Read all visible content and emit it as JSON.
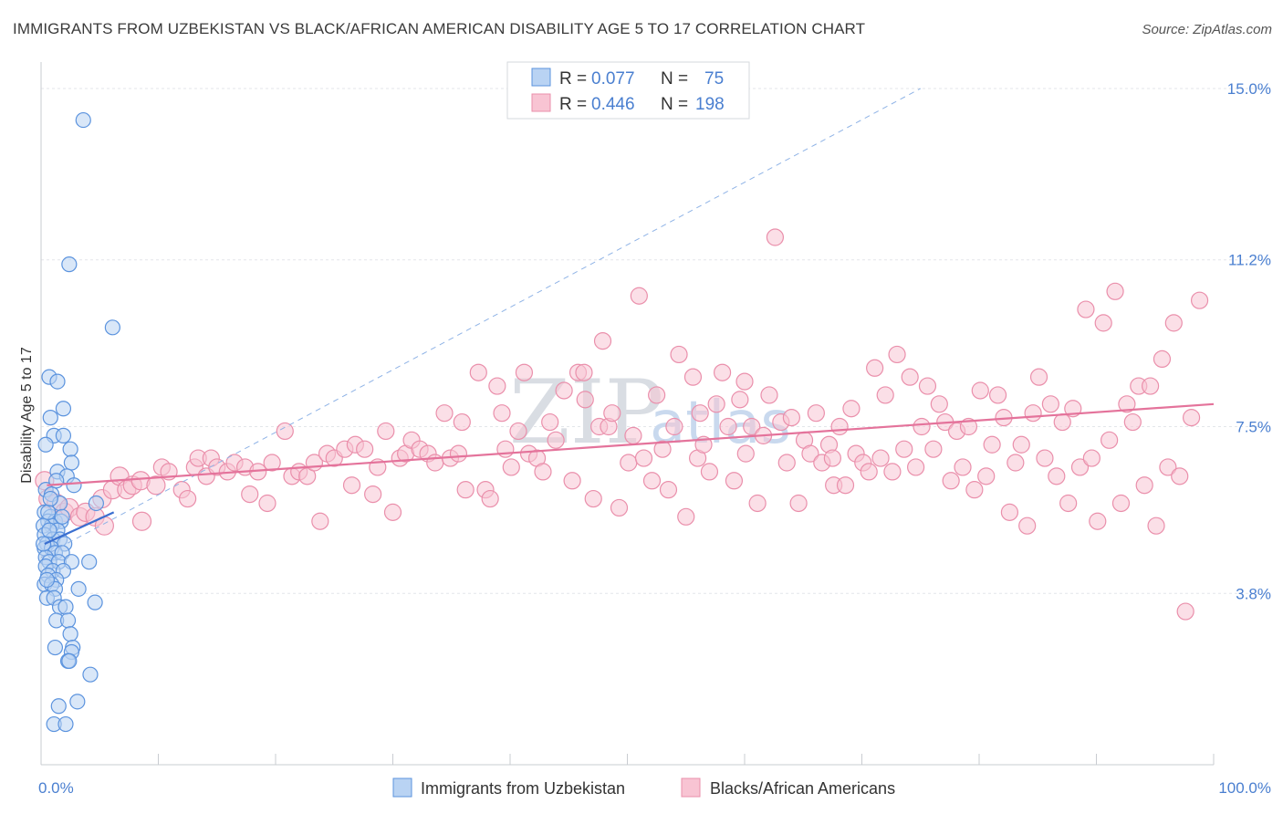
{
  "title": "IMMIGRANTS FROM UZBEKISTAN VS BLACK/AFRICAN AMERICAN DISABILITY AGE 5 TO 17 CORRELATION CHART",
  "source": "Source: ZipAtlas.com",
  "watermark": {
    "zip": "ZIP",
    "atlas": "atlas"
  },
  "legend": {
    "rows": [
      {
        "r_label": "R =",
        "r_value": "0.077",
        "n_label": "N =",
        "n_value": "75"
      },
      {
        "r_label": "R =",
        "r_value": "0.446",
        "n_label": "N =",
        "n_value": "198"
      }
    ]
  },
  "bottom_legend": {
    "series1": "Immigrants from Uzbekistan",
    "series2": "Blacks/African Americans"
  },
  "colors": {
    "blue_fill": "#b9d3f3",
    "blue_stroke": "#5b93de",
    "blue_line": "#3a6fd0",
    "pink_fill": "#f8c4d3",
    "pink_stroke": "#ea8fab",
    "pink_line": "#e4739b",
    "grid": "#e3e6ea",
    "tick_text": "#4a7fd0"
  },
  "chart_data": {
    "type": "scatter",
    "ylabel": "Disability Age 5 to 17",
    "xlim": [
      0,
      100
    ],
    "ylim": [
      0,
      15.0
    ],
    "x_tick_labels": [
      "0.0%",
      "100.0%"
    ],
    "y_ticks": [
      3.8,
      7.5,
      11.2,
      15.0
    ],
    "y_tick_labels": [
      "3.8%",
      "7.5%",
      "11.2%",
      "15.0%"
    ],
    "grid": true,
    "series": [
      {
        "name": "Immigrants from Uzbekistan",
        "color": "#5b93de",
        "trend": {
          "x": [
            0.3,
            6.2
          ],
          "y": [
            4.9,
            5.6
          ]
        },
        "points": [
          [
            3.6,
            14.3
          ],
          [
            2.4,
            11.1
          ],
          [
            6.1,
            9.7
          ],
          [
            0.7,
            8.6
          ],
          [
            1.4,
            8.5
          ],
          [
            1.9,
            7.9
          ],
          [
            0.8,
            7.7
          ],
          [
            1.1,
            7.3
          ],
          [
            1.9,
            7.3
          ],
          [
            2.5,
            7.0
          ],
          [
            0.4,
            7.1
          ],
          [
            2.6,
            6.7
          ],
          [
            1.4,
            6.5
          ],
          [
            2.2,
            6.4
          ],
          [
            0.4,
            6.1
          ],
          [
            0.9,
            6.0
          ],
          [
            1.6,
            5.8
          ],
          [
            4.7,
            5.8
          ],
          [
            0.3,
            5.6
          ],
          [
            0.8,
            5.5
          ],
          [
            0.6,
            5.4
          ],
          [
            1.2,
            5.4
          ],
          [
            1.7,
            5.4
          ],
          [
            0.9,
            5.3
          ],
          [
            1.4,
            5.2
          ],
          [
            0.2,
            5.3
          ],
          [
            0.3,
            5.1
          ],
          [
            1.0,
            5.0
          ],
          [
            1.6,
            5.0
          ],
          [
            0.5,
            4.9
          ],
          [
            2.0,
            4.9
          ],
          [
            0.3,
            4.8
          ],
          [
            0.9,
            4.8
          ],
          [
            1.2,
            4.7
          ],
          [
            1.8,
            4.7
          ],
          [
            0.4,
            4.6
          ],
          [
            0.7,
            4.5
          ],
          [
            1.5,
            4.5
          ],
          [
            2.6,
            4.5
          ],
          [
            4.1,
            4.5
          ],
          [
            0.4,
            4.4
          ],
          [
            1.0,
            4.3
          ],
          [
            1.9,
            4.3
          ],
          [
            0.6,
            4.2
          ],
          [
            1.3,
            4.1
          ],
          [
            0.3,
            4.0
          ],
          [
            0.9,
            4.0
          ],
          [
            1.2,
            3.9
          ],
          [
            3.2,
            3.9
          ],
          [
            0.5,
            3.7
          ],
          [
            1.1,
            3.7
          ],
          [
            4.6,
            3.6
          ],
          [
            1.6,
            3.5
          ],
          [
            2.1,
            3.5
          ],
          [
            1.3,
            3.2
          ],
          [
            2.3,
            3.2
          ],
          [
            2.5,
            2.9
          ],
          [
            1.2,
            2.6
          ],
          [
            2.7,
            2.6
          ],
          [
            2.6,
            2.5
          ],
          [
            2.3,
            2.3
          ],
          [
            2.4,
            2.3
          ],
          [
            4.2,
            2.0
          ],
          [
            1.5,
            1.3
          ],
          [
            3.1,
            1.4
          ],
          [
            1.1,
            0.9
          ],
          [
            2.1,
            0.9
          ],
          [
            0.6,
            5.6
          ],
          [
            0.8,
            5.9
          ],
          [
            1.8,
            5.5
          ],
          [
            0.2,
            4.9
          ],
          [
            0.7,
            5.2
          ],
          [
            1.3,
            6.3
          ],
          [
            2.8,
            6.2
          ],
          [
            0.5,
            4.1
          ]
        ]
      },
      {
        "name": "Blacks/African Americans",
        "color": "#ea8fab",
        "trend": {
          "x": [
            0.5,
            100
          ],
          "y": [
            6.2,
            8.0
          ]
        },
        "points": [
          [
            0.3,
            6.3
          ],
          [
            0.6,
            5.9
          ],
          [
            1.3,
            5.8
          ],
          [
            2.0,
            5.6
          ],
          [
            2.4,
            5.7
          ],
          [
            3.3,
            5.5
          ],
          [
            3.8,
            5.6
          ],
          [
            4.6,
            5.5
          ],
          [
            5.2,
            5.9
          ],
          [
            5.4,
            5.3
          ],
          [
            6.1,
            6.1
          ],
          [
            6.7,
            6.4
          ],
          [
            7.3,
            6.1
          ],
          [
            7.8,
            6.2
          ],
          [
            8.5,
            6.3
          ],
          [
            8.6,
            5.4
          ],
          [
            9.8,
            6.2
          ],
          [
            10.3,
            6.6
          ],
          [
            10.9,
            6.5
          ],
          [
            12.0,
            6.1
          ],
          [
            12.5,
            5.9
          ],
          [
            13.1,
            6.6
          ],
          [
            13.4,
            6.8
          ],
          [
            14.1,
            6.4
          ],
          [
            14.5,
            6.8
          ],
          [
            15.0,
            6.6
          ],
          [
            15.9,
            6.5
          ],
          [
            16.5,
            6.7
          ],
          [
            17.4,
            6.6
          ],
          [
            17.8,
            6.0
          ],
          [
            18.5,
            6.5
          ],
          [
            19.3,
            5.8
          ],
          [
            19.7,
            6.7
          ],
          [
            20.8,
            7.4
          ],
          [
            21.4,
            6.4
          ],
          [
            22.0,
            6.5
          ],
          [
            22.7,
            6.4
          ],
          [
            23.3,
            6.7
          ],
          [
            23.8,
            5.4
          ],
          [
            24.4,
            6.9
          ],
          [
            25.0,
            6.8
          ],
          [
            25.9,
            7.0
          ],
          [
            26.5,
            6.2
          ],
          [
            26.8,
            7.1
          ],
          [
            27.6,
            7.0
          ],
          [
            28.3,
            6.0
          ],
          [
            28.7,
            6.6
          ],
          [
            29.4,
            7.4
          ],
          [
            30.0,
            5.6
          ],
          [
            30.6,
            6.8
          ],
          [
            31.1,
            6.9
          ],
          [
            31.6,
            7.2
          ],
          [
            32.3,
            7.0
          ],
          [
            33.0,
            6.9
          ],
          [
            33.6,
            6.7
          ],
          [
            34.4,
            7.8
          ],
          [
            34.9,
            6.8
          ],
          [
            35.6,
            6.9
          ],
          [
            35.9,
            7.6
          ],
          [
            36.2,
            6.1
          ],
          [
            37.3,
            8.7
          ],
          [
            37.9,
            6.1
          ],
          [
            38.3,
            5.9
          ],
          [
            38.9,
            8.4
          ],
          [
            39.3,
            7.8
          ],
          [
            39.6,
            7.0
          ],
          [
            40.1,
            6.6
          ],
          [
            40.7,
            7.4
          ],
          [
            41.2,
            8.7
          ],
          [
            41.6,
            6.9
          ],
          [
            42.3,
            6.8
          ],
          [
            42.8,
            6.5
          ],
          [
            43.4,
            7.6
          ],
          [
            43.9,
            7.2
          ],
          [
            44.6,
            8.3
          ],
          [
            45.3,
            6.3
          ],
          [
            45.8,
            8.7
          ],
          [
            46.4,
            8.1
          ],
          [
            47.1,
            5.9
          ],
          [
            47.6,
            7.5
          ],
          [
            47.9,
            9.4
          ],
          [
            48.4,
            7.5
          ],
          [
            48.7,
            7.8
          ],
          [
            49.3,
            5.7
          ],
          [
            50.1,
            6.7
          ],
          [
            50.5,
            7.3
          ],
          [
            51.0,
            10.4
          ],
          [
            51.4,
            6.8
          ],
          [
            52.1,
            6.3
          ],
          [
            52.5,
            8.2
          ],
          [
            53.0,
            7.0
          ],
          [
            53.5,
            6.1
          ],
          [
            54.0,
            7.5
          ],
          [
            54.4,
            9.1
          ],
          [
            55.0,
            5.5
          ],
          [
            55.6,
            8.6
          ],
          [
            56.0,
            6.8
          ],
          [
            56.5,
            7.1
          ],
          [
            57.0,
            6.5
          ],
          [
            57.6,
            8.0
          ],
          [
            58.1,
            8.7
          ],
          [
            58.6,
            7.5
          ],
          [
            59.1,
            6.3
          ],
          [
            59.6,
            8.1
          ],
          [
            60.1,
            6.9
          ],
          [
            60.6,
            7.5
          ],
          [
            61.1,
            5.8
          ],
          [
            61.6,
            7.3
          ],
          [
            62.1,
            8.2
          ],
          [
            62.6,
            11.7
          ],
          [
            63.1,
            7.6
          ],
          [
            63.6,
            6.7
          ],
          [
            64.0,
            7.7
          ],
          [
            64.6,
            5.8
          ],
          [
            65.1,
            7.2
          ],
          [
            65.6,
            6.9
          ],
          [
            66.1,
            7.8
          ],
          [
            66.6,
            6.7
          ],
          [
            67.2,
            7.1
          ],
          [
            67.6,
            6.2
          ],
          [
            68.1,
            7.5
          ],
          [
            68.6,
            6.2
          ],
          [
            69.1,
            7.9
          ],
          [
            69.5,
            6.9
          ],
          [
            70.1,
            6.7
          ],
          [
            70.6,
            6.5
          ],
          [
            71.1,
            8.8
          ],
          [
            71.6,
            6.8
          ],
          [
            72.0,
            8.2
          ],
          [
            72.6,
            6.5
          ],
          [
            73.0,
            9.1
          ],
          [
            73.6,
            7.0
          ],
          [
            74.1,
            8.6
          ],
          [
            74.6,
            6.6
          ],
          [
            75.1,
            7.5
          ],
          [
            75.6,
            8.4
          ],
          [
            76.1,
            7.0
          ],
          [
            76.6,
            8.0
          ],
          [
            77.1,
            7.6
          ],
          [
            77.6,
            6.3
          ],
          [
            78.1,
            7.4
          ],
          [
            78.6,
            6.6
          ],
          [
            79.1,
            7.5
          ],
          [
            79.6,
            6.1
          ],
          [
            80.1,
            8.3
          ],
          [
            80.6,
            6.4
          ],
          [
            81.1,
            7.1
          ],
          [
            81.6,
            8.2
          ],
          [
            82.1,
            7.7
          ],
          [
            82.6,
            5.6
          ],
          [
            83.1,
            6.7
          ],
          [
            83.6,
            7.1
          ],
          [
            84.1,
            5.3
          ],
          [
            84.6,
            7.8
          ],
          [
            85.1,
            8.6
          ],
          [
            85.6,
            6.8
          ],
          [
            86.1,
            8.0
          ],
          [
            86.6,
            6.4
          ],
          [
            87.1,
            7.6
          ],
          [
            87.6,
            5.8
          ],
          [
            88.0,
            7.9
          ],
          [
            88.6,
            6.6
          ],
          [
            89.1,
            10.1
          ],
          [
            89.6,
            6.8
          ],
          [
            90.1,
            5.4
          ],
          [
            90.6,
            9.8
          ],
          [
            91.1,
            7.2
          ],
          [
            91.6,
            10.5
          ],
          [
            92.1,
            5.8
          ],
          [
            92.6,
            8.0
          ],
          [
            93.1,
            7.6
          ],
          [
            93.6,
            8.4
          ],
          [
            94.1,
            6.2
          ],
          [
            94.6,
            8.4
          ],
          [
            95.1,
            5.3
          ],
          [
            95.6,
            9.0
          ],
          [
            96.1,
            6.6
          ],
          [
            96.6,
            9.8
          ],
          [
            97.1,
            6.4
          ],
          [
            97.6,
            3.4
          ],
          [
            98.1,
            7.7
          ],
          [
            98.8,
            10.3
          ],
          [
            56.2,
            7.8
          ],
          [
            60.0,
            8.5
          ],
          [
            67.5,
            6.8
          ],
          [
            46.3,
            8.7
          ]
        ]
      }
    ],
    "reference_line": {
      "x": [
        0,
        75
      ],
      "y": [
        4.6,
        15.0
      ],
      "style": "dashed"
    }
  }
}
